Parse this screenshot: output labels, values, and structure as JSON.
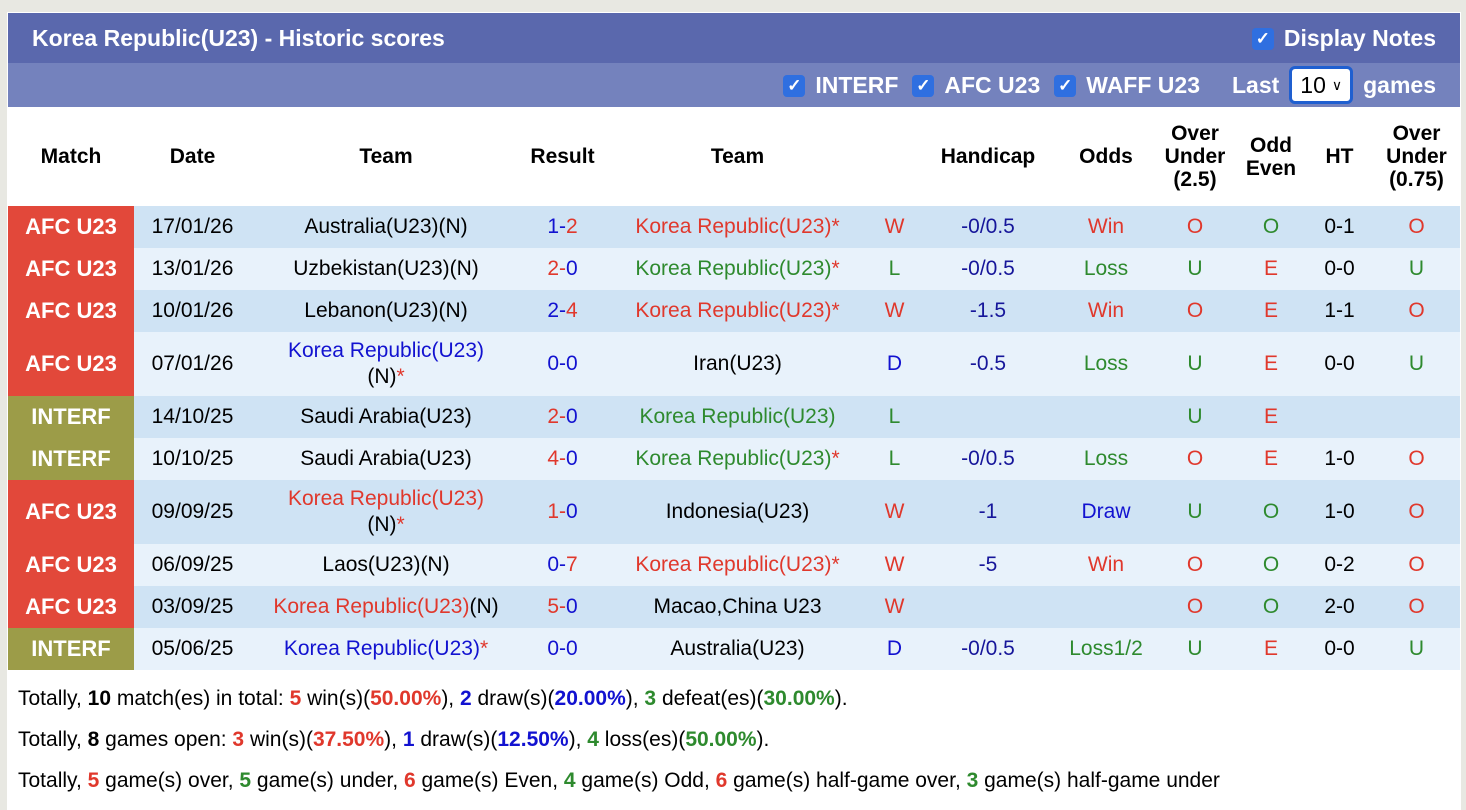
{
  "header": {
    "title": "Korea Republic(U23) - Historic scores",
    "display_notes": "Display Notes"
  },
  "filters": {
    "items": [
      "INTERF",
      "AFC U23",
      "WAFF U23"
    ],
    "last_label": "Last",
    "games_label": "games",
    "last_value": "10"
  },
  "columns": [
    "Match",
    "Date",
    "Team",
    "Result",
    "Team",
    "",
    "Handicap",
    "Odds",
    "Over Under (2.5)",
    "Odd Even",
    "HT",
    "Over Under (0.75)"
  ],
  "colors": {
    "AFC U23": "#e2483a",
    "INTERF": "#9c9c48",
    "W": "#e0382c",
    "L": "#2e8a2e",
    "D": "#1212d0",
    "O": "#e0382c",
    "U": "#2e8a2e",
    "E": "#e0382c",
    "Oo": "#2e8a2e"
  },
  "rows": [
    {
      "comp": "AFC U23",
      "date": "17/01/26",
      "home": "Australia(U23)(N)",
      "home_korea": false,
      "hs": "1",
      "as": "2",
      "away": "Korea Republic(U23)",
      "away_korea": true,
      "star": "*",
      "res": "W",
      "hc": "-0/0.5",
      "odds": "Win",
      "ou": "O",
      "oe": "O",
      "ht": "0-1",
      "ou2": "O"
    },
    {
      "comp": "AFC U23",
      "date": "13/01/26",
      "home": "Uzbekistan(U23)(N)",
      "home_korea": false,
      "hs": "2",
      "as": "0",
      "away": "Korea Republic(U23)",
      "away_korea": true,
      "star": "*",
      "res": "L",
      "hc": "-0/0.5",
      "odds": "Loss",
      "ou": "U",
      "oe": "E",
      "ht": "0-0",
      "ou2": "U"
    },
    {
      "comp": "AFC U23",
      "date": "10/01/26",
      "home": "Lebanon(U23)(N)",
      "home_korea": false,
      "hs": "2",
      "as": "4",
      "away": "Korea Republic(U23)",
      "away_korea": true,
      "star": "*",
      "res": "W",
      "hc": "-1.5",
      "odds": "Win",
      "ou": "O",
      "oe": "E",
      "ht": "1-1",
      "ou2": "O"
    },
    {
      "comp": "AFC U23",
      "date": "07/01/26",
      "home": "Korea Republic(U23)",
      "home_suffix": "(N)",
      "home_korea": true,
      "star": "*",
      "hs": "0",
      "as": "0",
      "away": "Iran(U23)",
      "away_korea": false,
      "res": "D",
      "hc": "-0.5",
      "odds": "Loss",
      "ou": "U",
      "oe": "E",
      "ht": "0-0",
      "ou2": "U",
      "tall": true
    },
    {
      "comp": "INTERF",
      "date": "14/10/25",
      "home": "Saudi Arabia(U23)",
      "home_korea": false,
      "hs": "2",
      "as": "0",
      "away": "Korea Republic(U23)",
      "away_korea": true,
      "star": "",
      "res": "L",
      "hc": "",
      "odds": "",
      "ou": "U",
      "oe": "E",
      "ht": "",
      "ou2": ""
    },
    {
      "comp": "INTERF",
      "date": "10/10/25",
      "home": "Saudi Arabia(U23)",
      "home_korea": false,
      "hs": "4",
      "as": "0",
      "away": "Korea Republic(U23)",
      "away_korea": true,
      "star": "*",
      "res": "L",
      "hc": "-0/0.5",
      "odds": "Loss",
      "ou": "O",
      "oe": "E",
      "ht": "1-0",
      "ou2": "O"
    },
    {
      "comp": "AFC U23",
      "date": "09/09/25",
      "home": "Korea Republic(U23)",
      "home_suffix": "(N)",
      "home_korea": true,
      "star": "*",
      "hs": "1",
      "as": "0",
      "away": "Indonesia(U23)",
      "away_korea": false,
      "res": "W",
      "hc": "-1",
      "odds": "Draw",
      "ou": "U",
      "oe": "O",
      "ht": "1-0",
      "ou2": "O",
      "tall": true
    },
    {
      "comp": "AFC U23",
      "date": "06/09/25",
      "home": "Laos(U23)(N)",
      "home_korea": false,
      "hs": "0",
      "as": "7",
      "away": "Korea Republic(U23)",
      "away_korea": true,
      "star": "*",
      "res": "W",
      "hc": "-5",
      "odds": "Win",
      "ou": "O",
      "oe": "O",
      "ht": "0-2",
      "ou2": "O"
    },
    {
      "comp": "AFC U23",
      "date": "03/09/25",
      "home": "Korea Republic(U23)",
      "home_suffix": "(N)",
      "home_korea": true,
      "star": "",
      "hs": "5",
      "as": "0",
      "away": "Macao,China U23",
      "away_korea": false,
      "res": "W",
      "hc": "",
      "odds": "",
      "ou": "O",
      "oe": "O",
      "ht": "2-0",
      "ou2": "O",
      "inline_suffix": true
    },
    {
      "comp": "INTERF",
      "date": "05/06/25",
      "home": "Korea Republic(U23)",
      "home_korea": true,
      "star": "*",
      "hs": "0",
      "as": "0",
      "away": "Australia(U23)",
      "away_korea": false,
      "res": "D",
      "hc": "-0/0.5",
      "odds": "Loss1/2",
      "ou": "U",
      "oe": "E",
      "ht": "0-0",
      "ou2": "U"
    }
  ],
  "summary": [
    [
      [
        "Totally, ",
        "blk",
        0
      ],
      [
        "10",
        "blk",
        1
      ],
      [
        " match(es) in total: ",
        "blk",
        0
      ],
      [
        "5",
        "red",
        1
      ],
      [
        " win(s)(",
        "blk",
        0
      ],
      [
        "50.00%",
        "red",
        1
      ],
      [
        "), ",
        "blk",
        0
      ],
      [
        "2",
        "blue",
        1
      ],
      [
        " draw(s)(",
        "blk",
        0
      ],
      [
        "20.00%",
        "blue",
        1
      ],
      [
        "), ",
        "blk",
        0
      ],
      [
        "3",
        "green",
        1
      ],
      [
        " defeat(es)(",
        "blk",
        0
      ],
      [
        "30.00%",
        "green",
        1
      ],
      [
        ").",
        "blk",
        0
      ]
    ],
    [
      [
        "Totally, ",
        "blk",
        0
      ],
      [
        "8",
        "blk",
        1
      ],
      [
        " games open: ",
        "blk",
        0
      ],
      [
        "3",
        "red",
        1
      ],
      [
        " win(s)(",
        "blk",
        0
      ],
      [
        "37.50%",
        "red",
        1
      ],
      [
        "), ",
        "blk",
        0
      ],
      [
        "1",
        "blue",
        1
      ],
      [
        " draw(s)(",
        "blk",
        0
      ],
      [
        "12.50%",
        "blue",
        1
      ],
      [
        "), ",
        "blk",
        0
      ],
      [
        "4",
        "green",
        1
      ],
      [
        " loss(es)(",
        "blk",
        0
      ],
      [
        "50.00%",
        "green",
        1
      ],
      [
        ").",
        "blk",
        0
      ]
    ],
    [
      [
        "Totally, ",
        "blk",
        0
      ],
      [
        "5",
        "red",
        1
      ],
      [
        " game(s) over, ",
        "blk",
        0
      ],
      [
        "5",
        "green",
        1
      ],
      [
        " game(s) under, ",
        "blk",
        0
      ],
      [
        "6",
        "red",
        1
      ],
      [
        " game(s) Even, ",
        "blk",
        0
      ],
      [
        "4",
        "green",
        1
      ],
      [
        " game(s) Odd, ",
        "blk",
        0
      ],
      [
        "6",
        "red",
        1
      ],
      [
        " game(s) half-game over, ",
        "blk",
        0
      ],
      [
        "3",
        "green",
        1
      ],
      [
        " game(s) half-game under",
        "blk",
        0
      ]
    ]
  ]
}
